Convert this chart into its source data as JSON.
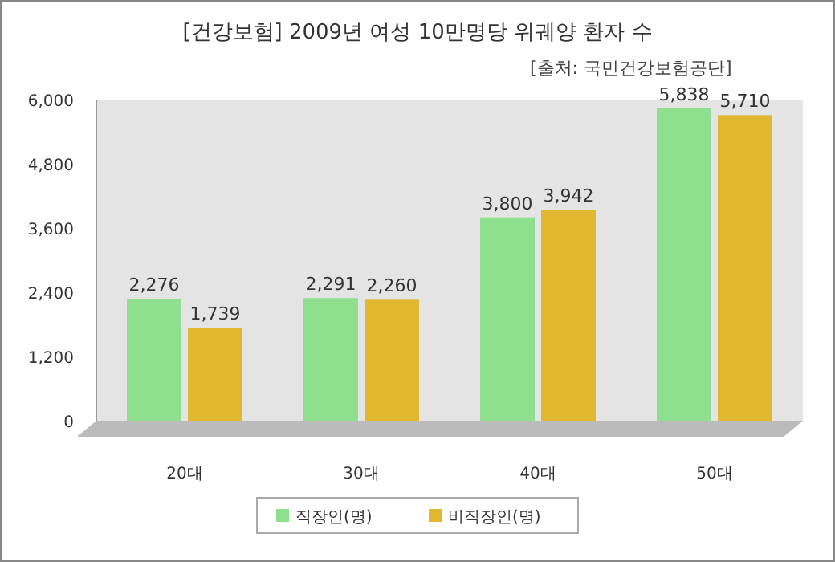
{
  "chart_data": {
    "type": "bar",
    "title": "[건강보험] 2009년 여성 10만명당 위궤양 환자 수",
    "subtitle": "[출처: 국민건강보험공단]",
    "categories": [
      "20대",
      "30대",
      "40대",
      "50대"
    ],
    "series": [
      {
        "name": "직장인(명)",
        "color": "#8ee08e",
        "values": [
          2276,
          2291,
          3800,
          5838
        ],
        "value_labels": [
          "2,276",
          "2,291",
          "3,800",
          "5,838"
        ]
      },
      {
        "name": "비직장인(명)",
        "color": "#e0b830",
        "values": [
          1739,
          2260,
          3942,
          5710
        ],
        "value_labels": [
          "1,739",
          "2,260",
          "3,942",
          "5,710"
        ]
      }
    ],
    "ylim": [
      0,
      6000
    ],
    "yticks": [
      0,
      {
        "value": 1200,
        "label": "1,200"
      },
      {
        "value": 2400,
        "label": "2,400"
      },
      {
        "value": 3600,
        "label": "3,600"
      },
      {
        "value": 4800,
        "label": "4,800"
      },
      {
        "value": 6000,
        "label": "6,000"
      }
    ],
    "legend": "bottom"
  }
}
